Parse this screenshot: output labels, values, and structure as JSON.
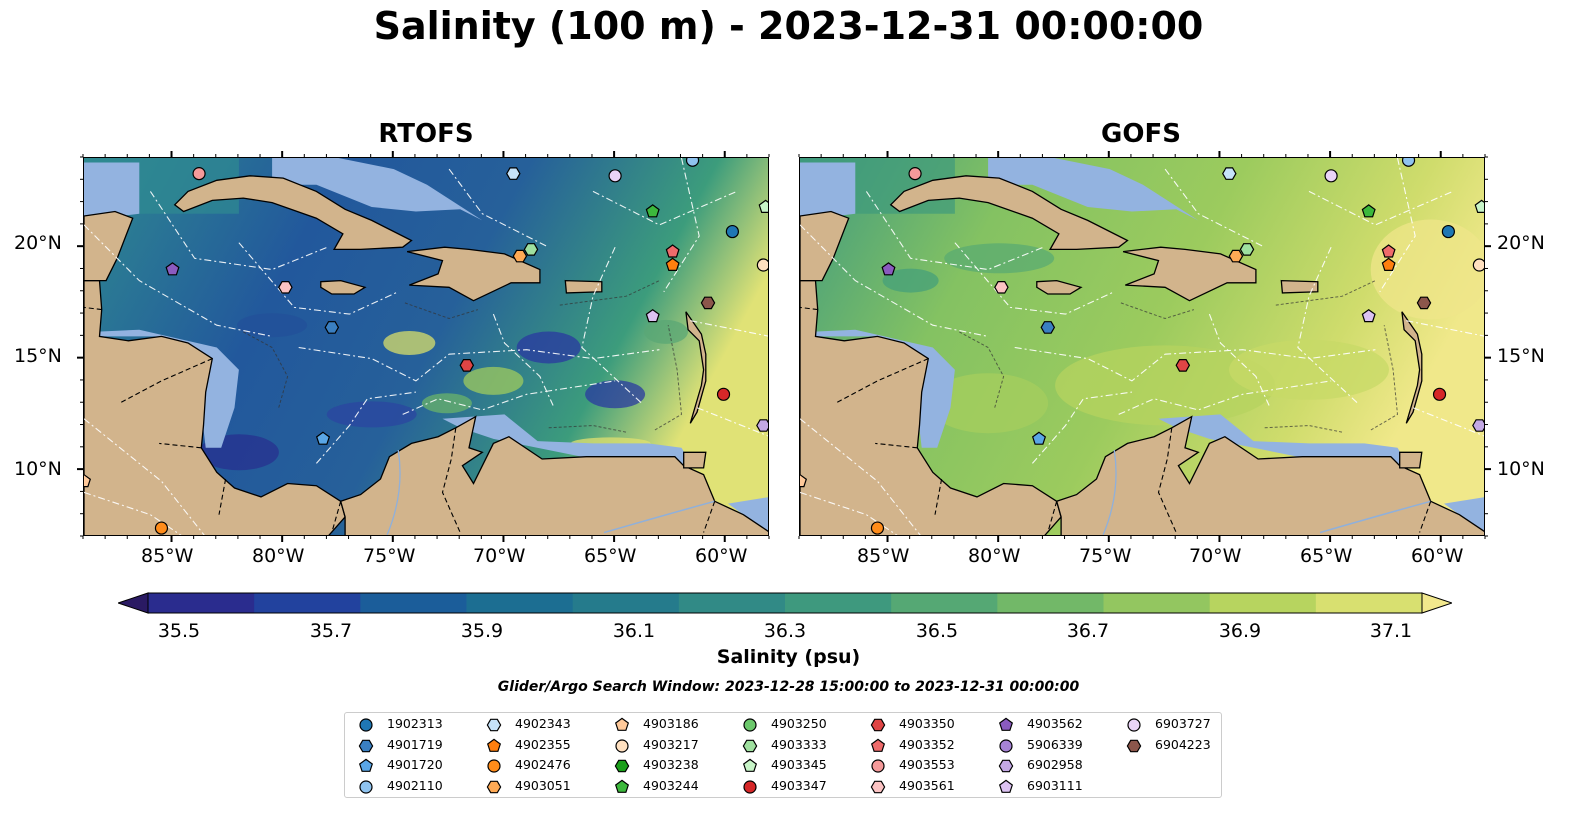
{
  "title": "Salinity (100 m) - 2023-12-31 00:00:00",
  "panels": [
    {
      "title": "RTOFS",
      "style": "rtofs"
    },
    {
      "title": "GOFS",
      "style": "gofs"
    }
  ],
  "x_ticks": [
    "85°W",
    "80°W",
    "75°W",
    "70°W",
    "65°W",
    "60°W"
  ],
  "y_ticks": [
    "20°N",
    "15°N",
    "10°N"
  ],
  "map_extent": {
    "lon": [
      -89,
      -58
    ],
    "lat": [
      7,
      24
    ]
  },
  "colorbar": {
    "label": "Salinity (psu)",
    "ticks": [
      "35.5",
      "35.7",
      "35.9",
      "36.1",
      "36.3",
      "36.5",
      "36.7",
      "36.9",
      "37.1"
    ],
    "range": [
      35.4,
      37.2
    ],
    "extend": "both",
    "colors": [
      "#2a1a63",
      "#2a2c8e",
      "#22429e",
      "#1b5d9a",
      "#1c6e92",
      "#257b8c",
      "#318a86",
      "#3e997e",
      "#55a874",
      "#72b868",
      "#93c660",
      "#b7d45f",
      "#d8e070",
      "#f2e88d"
    ]
  },
  "colors": {
    "land": "#d2b48c",
    "shallow": "#93b3e0",
    "deep_pacific": "#2a1a63"
  },
  "search_window": "Glider/Argo Search Window: 2023-12-28 15:00:00 to 2023-12-31 00:00:00",
  "legend": [
    {
      "id": "1902313",
      "marker": "circle",
      "color": "#1f77b4"
    },
    {
      "id": "4901719",
      "marker": "hexagon",
      "color": "#3a7fc1"
    },
    {
      "id": "4901720",
      "marker": "pentagon",
      "color": "#5aa6e6"
    },
    {
      "id": "4902110",
      "marker": "circle",
      "color": "#8fc3ef"
    },
    {
      "id": "4902343",
      "marker": "hexagon",
      "color": "#c6e3fa"
    },
    {
      "id": "4902355",
      "marker": "pentagon",
      "color": "#ff7f0e"
    },
    {
      "id": "4902476",
      "marker": "circle",
      "color": "#ff8c1a"
    },
    {
      "id": "4903051",
      "marker": "hexagon",
      "color": "#ffaa55"
    },
    {
      "id": "4903186",
      "marker": "pentagon",
      "color": "#ffc99a"
    },
    {
      "id": "4903217",
      "marker": "circle",
      "color": "#ffe0c0"
    },
    {
      "id": "4903238",
      "marker": "hexagon",
      "color": "#1a9e1a"
    },
    {
      "id": "4903244",
      "marker": "pentagon",
      "color": "#3cb83c"
    },
    {
      "id": "4903250",
      "marker": "circle",
      "color": "#6cc96c"
    },
    {
      "id": "4903333",
      "marker": "hexagon",
      "color": "#9fe09f"
    },
    {
      "id": "4903345",
      "marker": "pentagon",
      "color": "#c8f5c8"
    },
    {
      "id": "4903347",
      "marker": "circle",
      "color": "#d62728"
    },
    {
      "id": "4903350",
      "marker": "hexagon",
      "color": "#e04545"
    },
    {
      "id": "4903352",
      "marker": "pentagon",
      "color": "#ee6b6b"
    },
    {
      "id": "4903553",
      "marker": "circle",
      "color": "#f59a9a"
    },
    {
      "id": "4903561",
      "marker": "hexagon",
      "color": "#fbc3c3"
    },
    {
      "id": "4903562",
      "marker": "pentagon",
      "color": "#8a5bbf"
    },
    {
      "id": "5906339",
      "marker": "circle",
      "color": "#a683d4"
    },
    {
      "id": "6902958",
      "marker": "hexagon",
      "color": "#c3a8e4"
    },
    {
      "id": "6903111",
      "marker": "pentagon",
      "color": "#dcc2f2"
    },
    {
      "id": "6903727",
      "marker": "circle",
      "color": "#ead4f7"
    },
    {
      "id": "6904223",
      "marker": "hexagon",
      "color": "#8c564b"
    }
  ],
  "floats": [
    {
      "id": "4903553",
      "lon": -83.8,
      "lat": 23.3
    },
    {
      "id": "4902343",
      "lon": -69.6,
      "lat": 23.3
    },
    {
      "id": "6903727",
      "lon": -65.0,
      "lat": 23.2
    },
    {
      "id": "4902110",
      "lon": -61.5,
      "lat": 23.9
    },
    {
      "id": "4903244",
      "lon": -63.3,
      "lat": 21.6
    },
    {
      "id": "1902313",
      "lon": -59.7,
      "lat": 20.7
    },
    {
      "id": "4903345",
      "lon": -58.2,
      "lat": 21.8
    },
    {
      "id": "4903352",
      "lon": -62.4,
      "lat": 19.8
    },
    {
      "id": "4902355",
      "lon": -62.4,
      "lat": 19.2
    },
    {
      "id": "4903217",
      "lon": -58.3,
      "lat": 19.2
    },
    {
      "id": "4903051",
      "lon": -69.3,
      "lat": 19.6
    },
    {
      "id": "4903333",
      "lon": -68.8,
      "lat": 19.9
    },
    {
      "id": "4903562",
      "lon": -85.0,
      "lat": 19.0
    },
    {
      "id": "4903561",
      "lon": -79.9,
      "lat": 18.2
    },
    {
      "id": "6904223",
      "lon": -60.8,
      "lat": 17.5
    },
    {
      "id": "6903111",
      "lon": -63.3,
      "lat": 16.9
    },
    {
      "id": "4901719",
      "lon": -77.8,
      "lat": 16.4
    },
    {
      "id": "4903350",
      "lon": -71.7,
      "lat": 14.7
    },
    {
      "id": "4903347",
      "lon": -60.1,
      "lat": 13.4
    },
    {
      "id": "6902958",
      "lon": -58.3,
      "lat": 12.0
    },
    {
      "id": "4901720",
      "lon": -78.2,
      "lat": 11.4
    },
    {
      "id": "4902476",
      "lon": -85.5,
      "lat": 7.4
    },
    {
      "id": "4903186",
      "lon": -89.0,
      "lat": 9.5
    }
  ]
}
